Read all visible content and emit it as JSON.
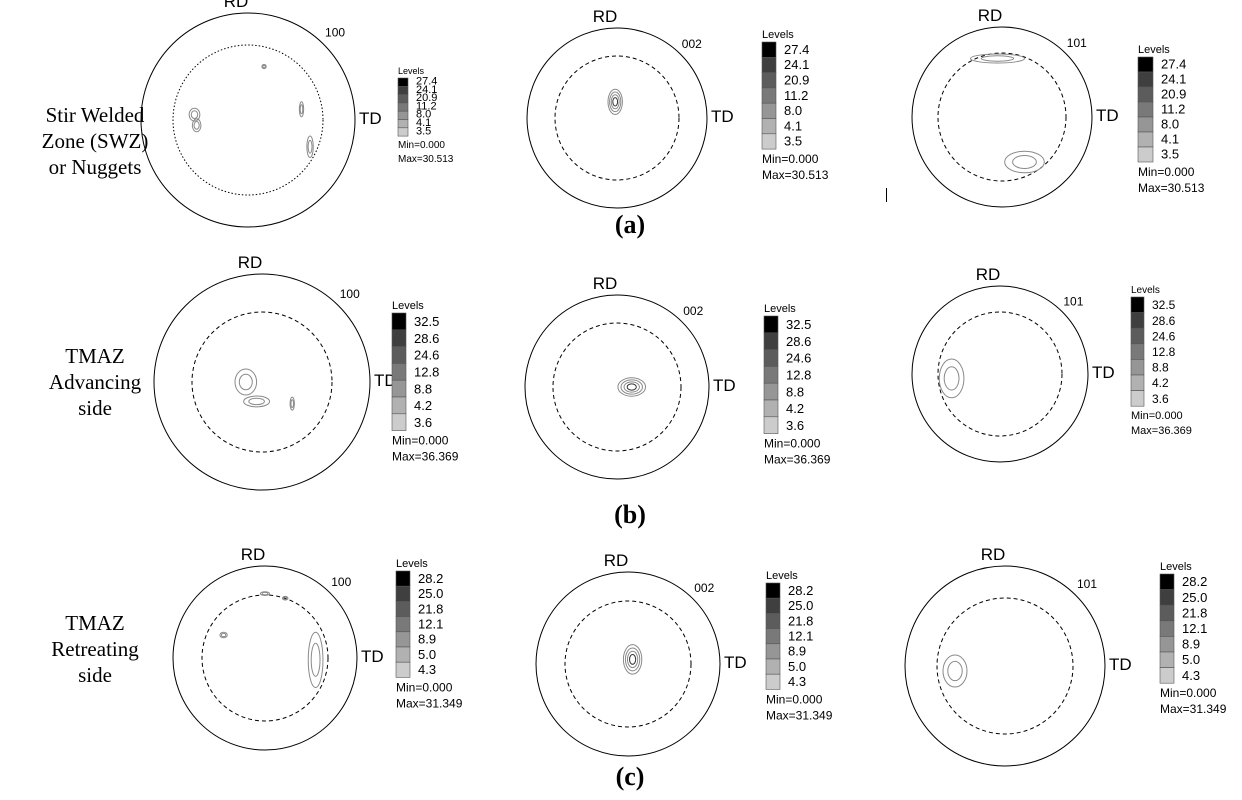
{
  "figure": {
    "rows": [
      {
        "label_lines": [
          "Stir Welded",
          "Zone (SWZ)",
          "or Nuggets"
        ],
        "caption": "(a)",
        "plots": [
          {
            "pole": "100",
            "rd_label": "RD",
            "td_label": "TD",
            "legend_title": "Levels",
            "levels": [
              "27.4",
              "24.1",
              "20.9",
              "11.2",
              "8.0",
              "4.1",
              "3.5"
            ],
            "min_label": "Min=0.000",
            "max_label": "Max=30.513"
          },
          {
            "pole": "002",
            "rd_label": "RD",
            "td_label": "TD",
            "legend_title": "Levels",
            "levels": [
              "27.4",
              "24.1",
              "20.9",
              "11.2",
              "8.0",
              "4.1",
              "3.5"
            ],
            "min_label": "Min=0.000",
            "max_label": "Max=30.513"
          },
          {
            "pole": "101",
            "rd_label": "RD",
            "td_label": "TD",
            "legend_title": "Levels",
            "levels": [
              "27.4",
              "24.1",
              "20.9",
              "11.2",
              "8.0",
              "4.1",
              "3.5"
            ],
            "min_label": "Min=0.000",
            "max_label": "Max=30.513"
          }
        ]
      },
      {
        "label_lines": [
          "TMAZ",
          "Advancing",
          "side"
        ],
        "caption": "(b)",
        "plots": [
          {
            "pole": "100",
            "rd_label": "RD",
            "td_label": "TD",
            "legend_title": "Levels",
            "levels": [
              "32.5",
              "28.6",
              "24.6",
              "12.8",
              "8.8",
              "4.2",
              "3.6"
            ],
            "min_label": "Min=0.000",
            "max_label": "Max=36.369"
          },
          {
            "pole": "002",
            "rd_label": "RD",
            "td_label": "TD",
            "legend_title": "Levels",
            "levels": [
              "32.5",
              "28.6",
              "24.6",
              "12.8",
              "8.8",
              "4.2",
              "3.6"
            ],
            "min_label": "Min=0.000",
            "max_label": "Max=36.369"
          },
          {
            "pole": "101",
            "rd_label": "RD",
            "td_label": "TD",
            "legend_title": "Levels",
            "levels": [
              "32.5",
              "28.6",
              "24.6",
              "12.8",
              "8.8",
              "4.2",
              "3.6"
            ],
            "min_label": "Min=0.000",
            "max_label": "Max=36.369"
          }
        ]
      },
      {
        "label_lines": [
          "TMAZ",
          "Retreating",
          "side"
        ],
        "caption": "(c)",
        "plots": [
          {
            "pole": "100",
            "rd_label": "RD",
            "td_label": "TD",
            "legend_title": "Levels",
            "levels": [
              "28.2",
              "25.0",
              "21.8",
              "12.1",
              "8.9",
              "5.0",
              "4.3"
            ],
            "min_label": "Min=0.000",
            "max_label": "Max=31.349"
          },
          {
            "pole": "002",
            "rd_label": "RD",
            "td_label": "TD",
            "legend_title": "Levels",
            "levels": [
              "28.2",
              "25.0",
              "21.8",
              "12.1",
              "8.9",
              "5.0",
              "4.3"
            ],
            "min_label": "Min=0.000",
            "max_label": "Max=31.349"
          },
          {
            "pole": "101",
            "rd_label": "RD",
            "td_label": "TD",
            "legend_title": "Levels",
            "levels": [
              "28.2",
              "25.0",
              "21.8",
              "12.1",
              "8.9",
              "5.0",
              "4.3"
            ],
            "min_label": "Min=0.000",
            "max_label": "Max=31.349"
          }
        ]
      }
    ],
    "legend_colors": [
      "#000000",
      "#3f3f3f",
      "#5c5c5c",
      "#797979",
      "#969696",
      "#b1b1b1",
      "#cccccc"
    ],
    "contour_color": "#8a8a8a"
  }
}
